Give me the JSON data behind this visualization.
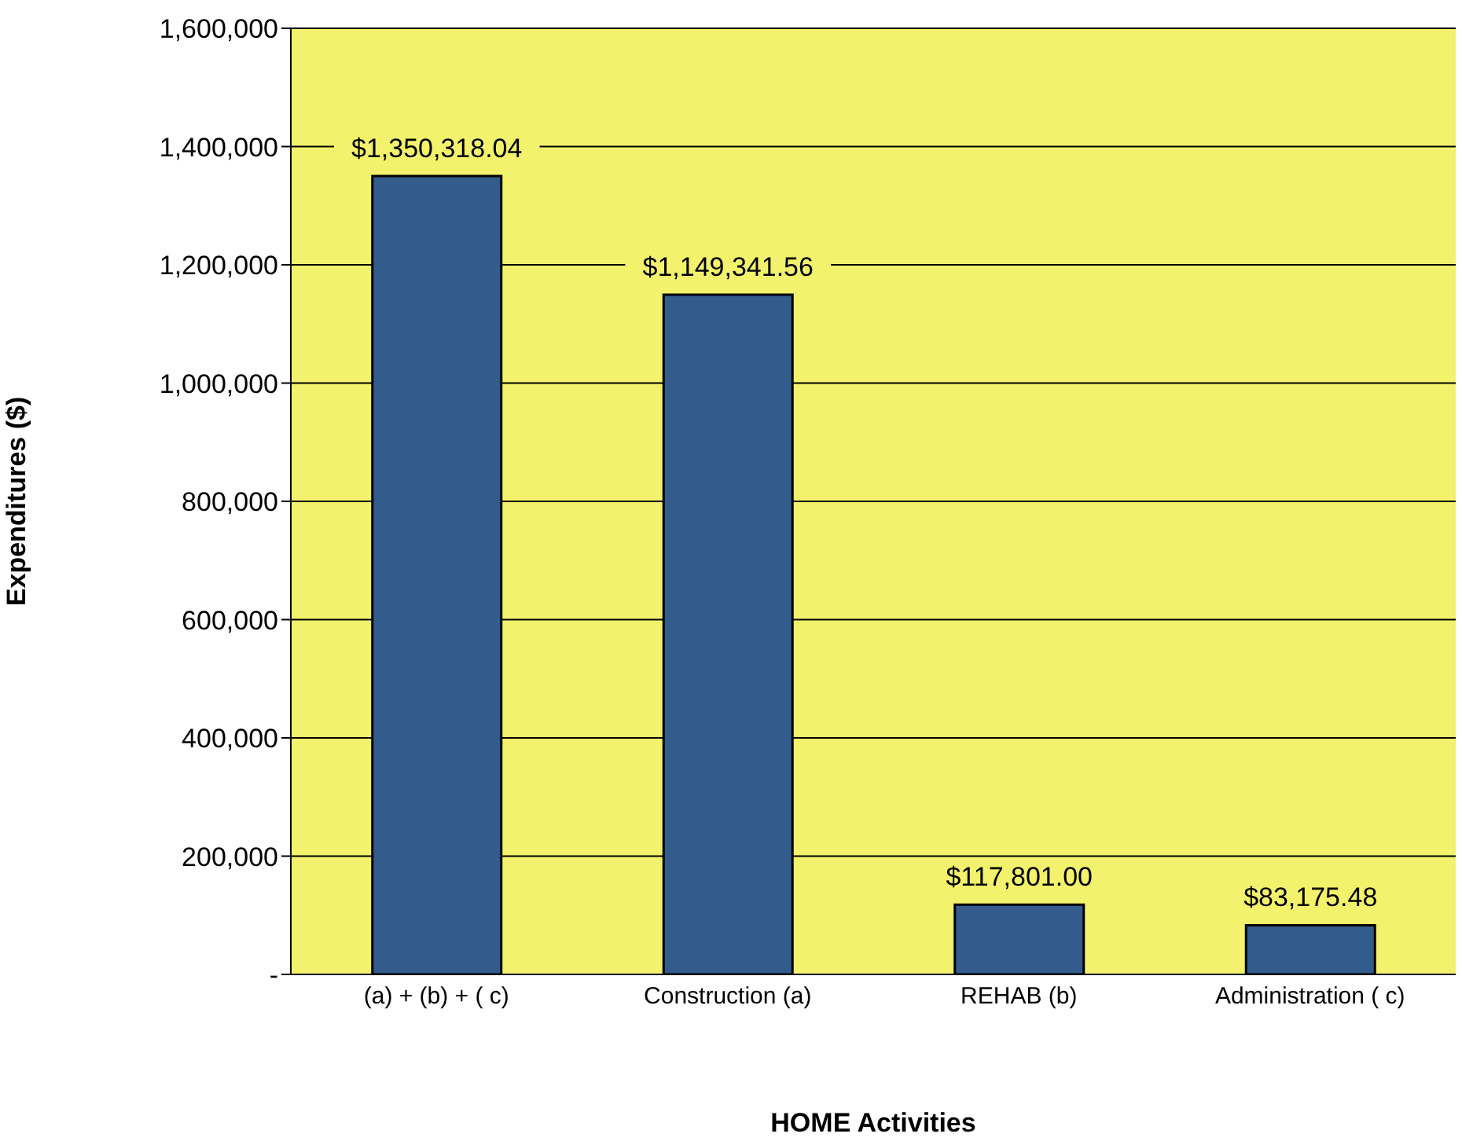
{
  "chart_data": {
    "type": "bar",
    "xlabel": "HOME Activities",
    "ylabel": "Expenditures ($)",
    "categories": [
      "(a) + (b) + ( c)",
      "Construction (a)",
      "REHAB (b)",
      "Administration ( c)"
    ],
    "values": [
      1350318.04,
      1149341.56,
      117801.0,
      83175.48
    ],
    "value_labels": [
      "$1,350,318.04",
      "$1,149,341.56",
      "$117,801.00",
      "$83,175.48"
    ],
    "color": "#335b8c",
    "ylim": [
      0,
      1600000
    ],
    "yticks": [
      {
        "value": 0,
        "label": "-"
      },
      {
        "value": 200000,
        "label": "200,000"
      },
      {
        "value": 400000,
        "label": "400,000"
      },
      {
        "value": 600000,
        "label": "600,000"
      },
      {
        "value": 800000,
        "label": "800,000"
      },
      {
        "value": 1000000,
        "label": "1,000,000"
      },
      {
        "value": 1200000,
        "label": "1,200,000"
      },
      {
        "value": 1400000,
        "label": "1,400,000"
      },
      {
        "value": 1600000,
        "label": "1,600,000"
      }
    ],
    "grid": "y",
    "legend": false
  }
}
